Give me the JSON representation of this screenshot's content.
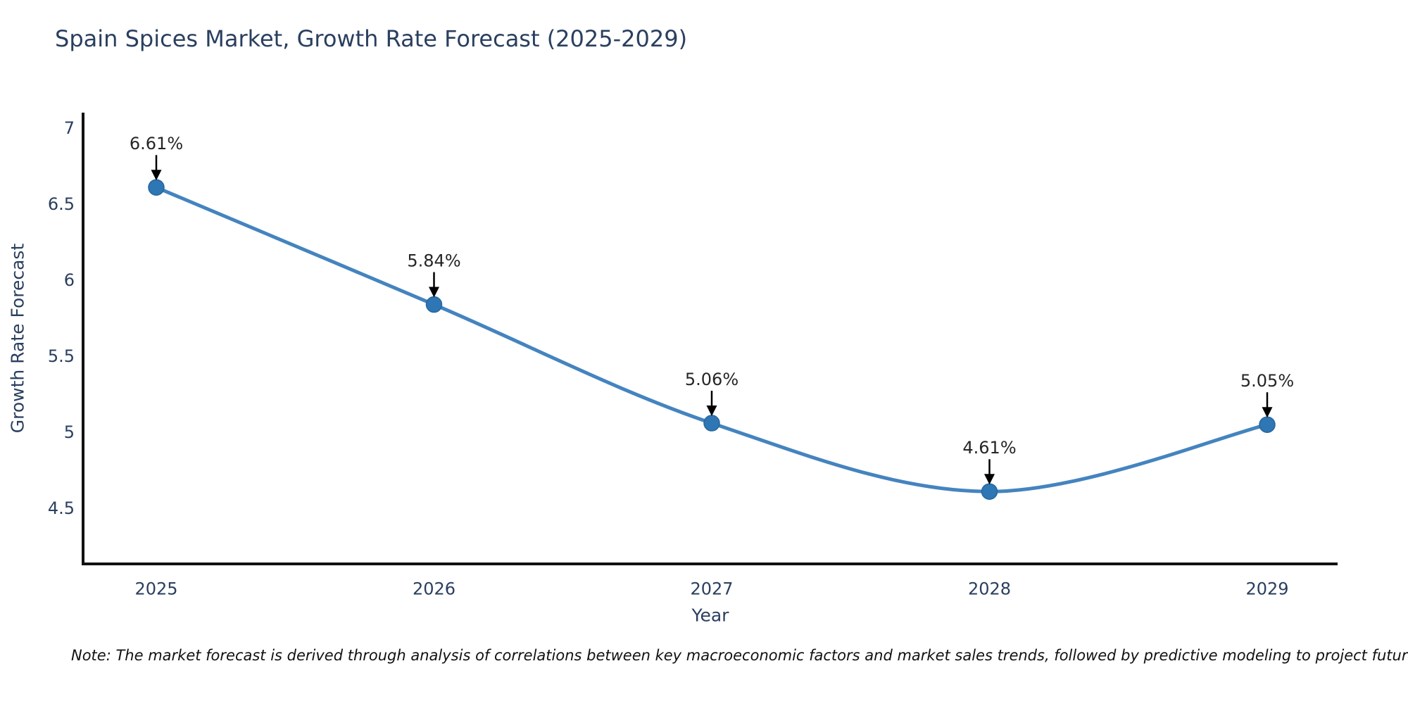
{
  "title": "Spain Spices Market, Growth Rate Forecast (2025-2029)",
  "note": "Note: The market forecast is derived through analysis of correlations between key macroeconomic factors and market sales trends, followed by predictive modeling to project future sales",
  "chart_data": {
    "type": "line",
    "line_shape": "spline",
    "categories": [
      "2025",
      "2026",
      "2027",
      "2028",
      "2029"
    ],
    "values": [
      6.61,
      5.84,
      5.06,
      4.61,
      5.05
    ],
    "point_labels": [
      "6.61%",
      "5.84%",
      "5.06%",
      "4.61%",
      "5.05%"
    ],
    "title": "Spain Spices Market, Growth Rate Forecast (2025-2029)",
    "xlabel": "Year",
    "ylabel": "Growth Rate Forecast",
    "yticks": [
      7,
      6.5,
      6,
      5.5,
      5,
      4.5
    ],
    "ytick_labels": [
      "7",
      "6.5",
      "6",
      "5.5",
      "5",
      "4.5"
    ],
    "ylim": [
      4.13,
      7.1
    ],
    "grid": false,
    "legend": "none",
    "colors": {
      "line": "#4484bf",
      "marker_fill": "#2f76b5",
      "marker_edge": "#27669f",
      "axis_spine": "#111111",
      "tick_text": "#2a3f5f",
      "axis_title_text": "#2a3f5f",
      "annotation_text": "#262626",
      "annotation_arrow": "#000000",
      "title_text": "#2a3f5f",
      "background": "#ffffff"
    }
  }
}
